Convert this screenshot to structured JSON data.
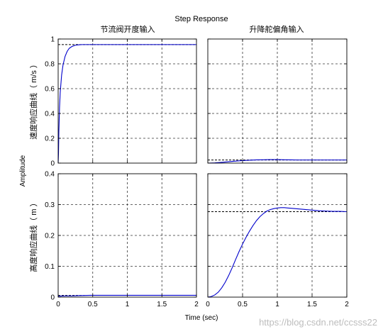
{
  "title": "Step Response",
  "xlabel": "Time (sec)",
  "ylabel": "Amplitude",
  "watermark": "https://blog.csdn.net/ccsss22",
  "colors": {
    "line": "#0000cc",
    "grid": "#333333",
    "axis": "#000000",
    "steady": "#000000"
  },
  "chart_data": {
    "type": "line",
    "title": "Step Response",
    "xlabel": "Time (sec)",
    "ylabel": "Amplitude",
    "grid": true,
    "column_titles": [
      "节流阀开度输入",
      "升降舵偏角输入"
    ],
    "row_labels": [
      "速度响应曲线（ m/s ）",
      "高度响应曲线（ m ）"
    ],
    "xlim": [
      0,
      2
    ],
    "xticks": [
      0,
      0.5,
      1,
      1.5,
      2
    ],
    "xtick_labels": [
      "0",
      "0.5",
      "1",
      "1.5",
      "2"
    ],
    "rows": [
      {
        "ylim": [
          0,
          1
        ],
        "yticks": [
          0,
          0.2,
          0.4,
          0.6,
          0.8,
          1
        ],
        "ytick_labels": [
          "0",
          "0.2",
          "0.4",
          "0.6",
          "0.8",
          "1"
        ]
      },
      {
        "ylim": [
          0,
          0.4
        ],
        "yticks": [
          0,
          0.1,
          0.2,
          0.3,
          0.4
        ],
        "ytick_labels": [
          "0",
          "0.1",
          "0.2",
          "0.3",
          "0.4"
        ]
      }
    ],
    "panels": [
      {
        "row": 0,
        "col": 0,
        "steady_state": 0.955,
        "x": [
          0,
          0.005,
          0.01,
          0.02,
          0.03,
          0.05,
          0.07,
          0.1,
          0.13,
          0.16,
          0.2,
          0.25,
          0.3,
          0.35,
          0.4,
          0.5,
          0.7,
          1.0,
          1.5,
          2.0
        ],
        "y": [
          0,
          0.08,
          0.25,
          0.45,
          0.57,
          0.71,
          0.79,
          0.86,
          0.9,
          0.925,
          0.94,
          0.95,
          0.953,
          0.955,
          0.955,
          0.955,
          0.955,
          0.955,
          0.955,
          0.955
        ]
      },
      {
        "row": 0,
        "col": 1,
        "steady_state": 0.025,
        "x": [
          0,
          0.1,
          0.2,
          0.3,
          0.4,
          0.5,
          0.6,
          0.7,
          0.8,
          0.9,
          1.0,
          1.1,
          1.2,
          1.3,
          1.5,
          1.7,
          2.0
        ],
        "y": [
          0,
          0.002,
          0.006,
          0.011,
          0.016,
          0.02,
          0.023,
          0.026,
          0.027,
          0.028,
          0.028,
          0.027,
          0.026,
          0.025,
          0.025,
          0.025,
          0.025
        ]
      },
      {
        "row": 1,
        "col": 0,
        "steady_state": 0.006,
        "x": [
          0,
          0.1,
          0.2,
          0.3,
          0.5,
          0.8,
          1.0,
          1.5,
          2.0
        ],
        "y": [
          0.003,
          0.004,
          0.004,
          0.005,
          0.006,
          0.006,
          0.006,
          0.006,
          0.006
        ]
      },
      {
        "row": 1,
        "col": 1,
        "steady_state": 0.277,
        "x": [
          0,
          0.05,
          0.1,
          0.15,
          0.2,
          0.25,
          0.3,
          0.35,
          0.4,
          0.45,
          0.5,
          0.55,
          0.6,
          0.65,
          0.7,
          0.75,
          0.8,
          0.85,
          0.9,
          0.95,
          1.0,
          1.05,
          1.1,
          1.15,
          1.2,
          1.3,
          1.4,
          1.5,
          1.6,
          1.7,
          1.8,
          1.9,
          2.0
        ],
        "y": [
          0,
          0.002,
          0.007,
          0.016,
          0.03,
          0.048,
          0.07,
          0.095,
          0.122,
          0.148,
          0.172,
          0.194,
          0.214,
          0.232,
          0.248,
          0.261,
          0.271,
          0.279,
          0.284,
          0.287,
          0.289,
          0.29,
          0.29,
          0.289,
          0.288,
          0.286,
          0.284,
          0.282,
          0.28,
          0.279,
          0.278,
          0.278,
          0.277
        ]
      }
    ]
  }
}
